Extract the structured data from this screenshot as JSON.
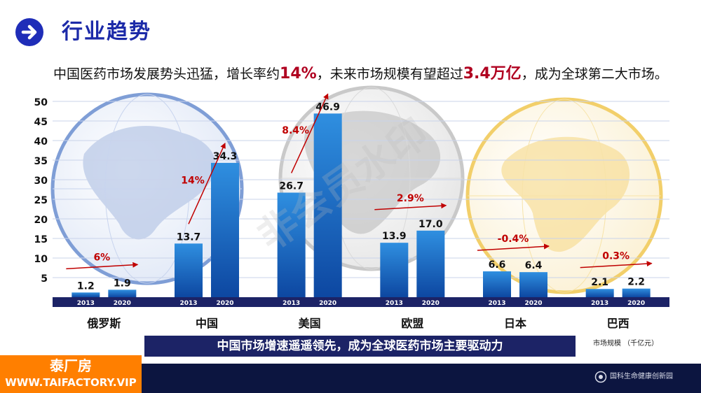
{
  "header": {
    "title": "行业趋势",
    "icon": "arrow-right-circle-icon"
  },
  "subtitle": {
    "part1": "中国医药市场发展势头迅猛，增长率约",
    "highlight1": "14%",
    "part2": "，未来市场规模有望超过",
    "highlight2": "3.4万亿",
    "part3": "，成为全球第二大市场。"
  },
  "chart_data": {
    "type": "bar",
    "categories": [
      "俄罗斯",
      "中国",
      "美国",
      "欧盟",
      "日本",
      "巴西"
    ],
    "years": [
      "2013",
      "2020"
    ],
    "values": [
      [
        1.2,
        1.9
      ],
      [
        13.7,
        34.3
      ],
      [
        26.7,
        46.9
      ],
      [
        13.9,
        17.0
      ],
      [
        6.6,
        6.4
      ],
      [
        2.1,
        2.2
      ]
    ],
    "value_labels": [
      [
        "1.2",
        "1.9"
      ],
      [
        "13.7",
        "34.3"
      ],
      [
        "26.7",
        "46.9"
      ],
      [
        "13.9",
        "17.0"
      ],
      [
        "6.6",
        "6.4"
      ],
      [
        "2.1",
        "2.2"
      ]
    ],
    "growth_labels": [
      "6%",
      "14%",
      "8.4%",
      "2.9%",
      "-0.4%",
      "0.3%"
    ],
    "yticks": [
      5,
      10,
      15,
      20,
      25,
      30,
      35,
      40,
      45,
      50
    ],
    "ylim": [
      0,
      50
    ],
    "grid": true,
    "colors": {
      "bar": "#1565c0",
      "bar_light": "#2f8fe0",
      "growth": "#c00000",
      "axis_band": "#1c2366"
    }
  },
  "banner": {
    "text": "中国市场增速遥遥领先，成为全球医药市场主要驱动力"
  },
  "unit_note": "市场规模 （千亿元）",
  "brand": {
    "name": "泰厂房",
    "url": "WWW.TAIFACTORY.VIP"
  },
  "footer": {
    "org": "国科生命健康创新园",
    "logo": "org-logo-icon"
  },
  "watermark": {
    "text": "非会员水印"
  }
}
